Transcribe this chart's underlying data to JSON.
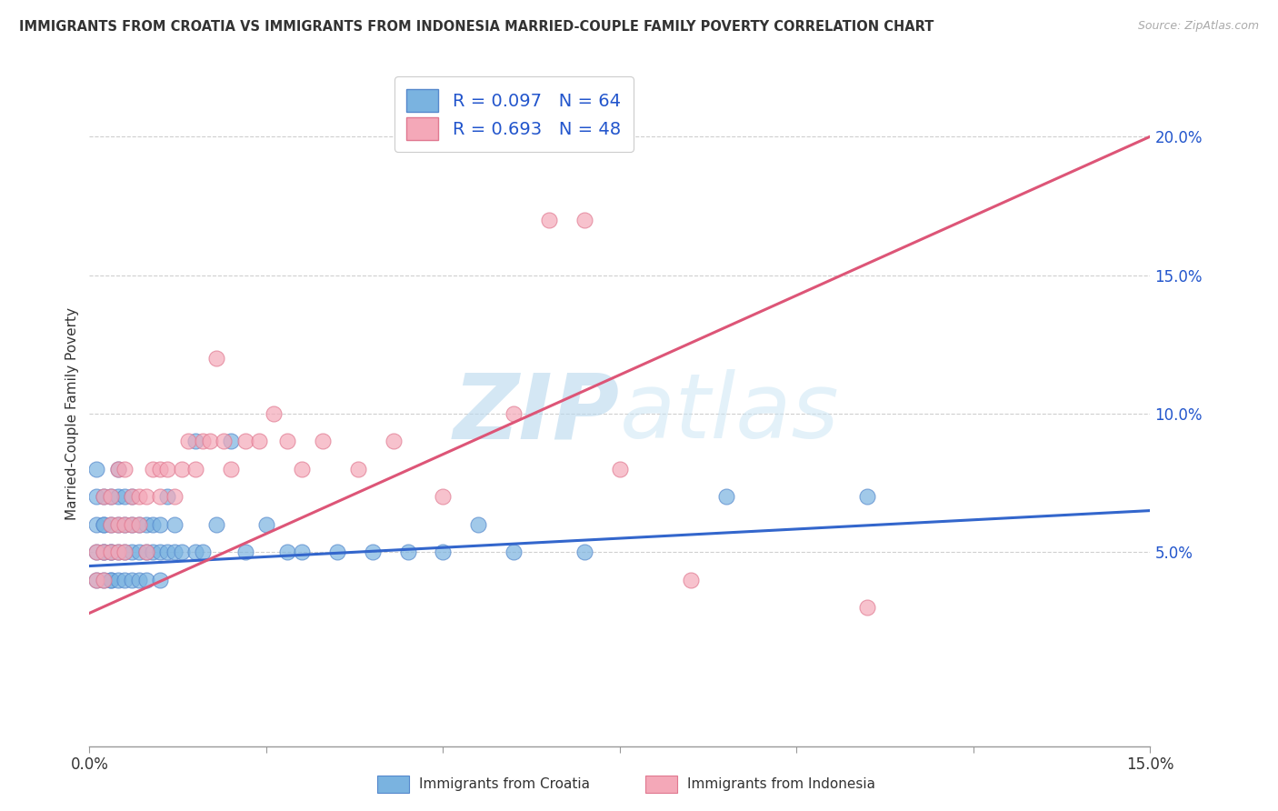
{
  "title": "IMMIGRANTS FROM CROATIA VS IMMIGRANTS FROM INDONESIA MARRIED-COUPLE FAMILY POVERTY CORRELATION CHART",
  "source": "Source: ZipAtlas.com",
  "ylabel": "Married-Couple Family Poverty",
  "xlim": [
    0.0,
    0.15
  ],
  "ylim": [
    -0.02,
    0.22
  ],
  "x_ticks": [
    0.0,
    0.025,
    0.05,
    0.075,
    0.1,
    0.125,
    0.15
  ],
  "x_tick_labels": [
    "0.0%",
    "",
    "",
    "",
    "",
    "",
    "15.0%"
  ],
  "y_ticks": [
    0.05,
    0.1,
    0.15,
    0.2
  ],
  "y_tick_labels": [
    "5.0%",
    "10.0%",
    "15.0%",
    "20.0%"
  ],
  "croatia_color": "#7ab3e0",
  "croatia_edge": "#5588cc",
  "indonesia_color": "#f4a8b8",
  "indonesia_edge": "#e07890",
  "croatia_R": 0.097,
  "croatia_N": 64,
  "indonesia_R": 0.693,
  "indonesia_N": 48,
  "legend_color": "#2255cc",
  "croatia_line_color": "#3366cc",
  "indonesia_line_color": "#dd5577",
  "watermark_color": "#cce4f5",
  "background_color": "#ffffff",
  "grid_color": "#bbbbbb",
  "croatia_line_y0": 0.045,
  "croatia_line_y1": 0.065,
  "indonesia_line_y0": 0.028,
  "indonesia_line_y1": 0.2,
  "croatia_scatter_x": [
    0.001,
    0.001,
    0.001,
    0.001,
    0.001,
    0.002,
    0.002,
    0.002,
    0.002,
    0.002,
    0.002,
    0.003,
    0.003,
    0.003,
    0.003,
    0.003,
    0.003,
    0.004,
    0.004,
    0.004,
    0.004,
    0.004,
    0.005,
    0.005,
    0.005,
    0.005,
    0.006,
    0.006,
    0.006,
    0.006,
    0.007,
    0.007,
    0.007,
    0.008,
    0.008,
    0.008,
    0.009,
    0.009,
    0.01,
    0.01,
    0.01,
    0.011,
    0.011,
    0.012,
    0.012,
    0.013,
    0.015,
    0.015,
    0.016,
    0.018,
    0.02,
    0.022,
    0.025,
    0.028,
    0.03,
    0.035,
    0.04,
    0.045,
    0.05,
    0.055,
    0.06,
    0.07,
    0.09,
    0.11
  ],
  "croatia_scatter_y": [
    0.06,
    0.07,
    0.08,
    0.04,
    0.05,
    0.05,
    0.06,
    0.07,
    0.04,
    0.05,
    0.06,
    0.04,
    0.05,
    0.06,
    0.07,
    0.04,
    0.05,
    0.04,
    0.05,
    0.06,
    0.07,
    0.08,
    0.04,
    0.05,
    0.06,
    0.07,
    0.04,
    0.05,
    0.06,
    0.07,
    0.04,
    0.05,
    0.06,
    0.04,
    0.05,
    0.06,
    0.05,
    0.06,
    0.04,
    0.05,
    0.06,
    0.05,
    0.07,
    0.05,
    0.06,
    0.05,
    0.05,
    0.09,
    0.05,
    0.06,
    0.09,
    0.05,
    0.06,
    0.05,
    0.05,
    0.05,
    0.05,
    0.05,
    0.05,
    0.06,
    0.05,
    0.05,
    0.07,
    0.07
  ],
  "indonesia_scatter_x": [
    0.001,
    0.001,
    0.002,
    0.002,
    0.002,
    0.003,
    0.003,
    0.003,
    0.004,
    0.004,
    0.004,
    0.005,
    0.005,
    0.005,
    0.006,
    0.006,
    0.007,
    0.007,
    0.008,
    0.008,
    0.009,
    0.01,
    0.01,
    0.011,
    0.012,
    0.013,
    0.014,
    0.015,
    0.016,
    0.017,
    0.018,
    0.019,
    0.02,
    0.022,
    0.024,
    0.026,
    0.028,
    0.03,
    0.033,
    0.038,
    0.043,
    0.05,
    0.06,
    0.065,
    0.07,
    0.075,
    0.085,
    0.11
  ],
  "indonesia_scatter_y": [
    0.04,
    0.05,
    0.04,
    0.05,
    0.07,
    0.05,
    0.06,
    0.07,
    0.05,
    0.06,
    0.08,
    0.05,
    0.06,
    0.08,
    0.06,
    0.07,
    0.06,
    0.07,
    0.05,
    0.07,
    0.08,
    0.07,
    0.08,
    0.08,
    0.07,
    0.08,
    0.09,
    0.08,
    0.09,
    0.09,
    0.12,
    0.09,
    0.08,
    0.09,
    0.09,
    0.1,
    0.09,
    0.08,
    0.09,
    0.08,
    0.09,
    0.07,
    0.1,
    0.17,
    0.17,
    0.08,
    0.04,
    0.03
  ]
}
